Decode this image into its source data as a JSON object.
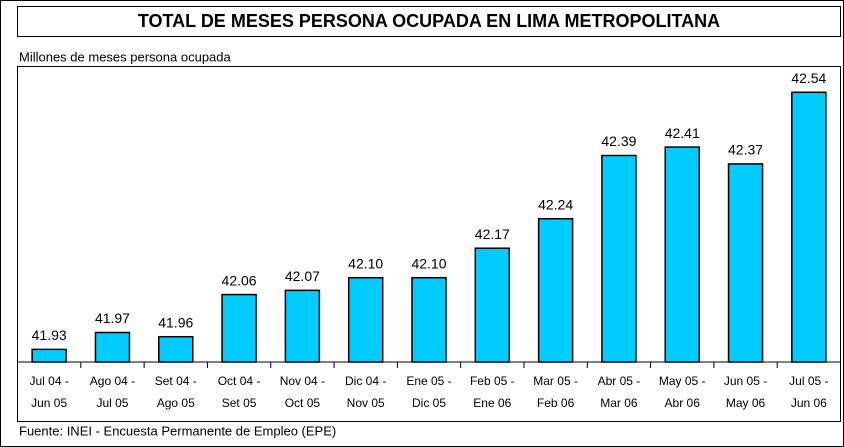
{
  "chart_data": {
    "type": "bar",
    "title": "TOTAL DE MESES PERSONA OCUPADA EN LIMA METROPOLITANA",
    "subtitle": "Millones de meses persona ocupada",
    "source": "Fuente: INEI - Encuesta Permanente de Empleo (EPE)",
    "categories": [
      [
        "Jul 04 -",
        "Jun 05"
      ],
      [
        "Ago 04 -",
        "Jul 05"
      ],
      [
        "Set 04 -",
        "Ago 05"
      ],
      [
        "Oct 04 -",
        "Set 05"
      ],
      [
        "Nov 04 -",
        "Oct 05"
      ],
      [
        "Dic 04 -",
        "Nov 05"
      ],
      [
        "Ene 05 -",
        "Dic 05"
      ],
      [
        "Feb 05 -",
        "Ene 06"
      ],
      [
        "Mar 05 -",
        "Feb 06"
      ],
      [
        "Abr 05 -",
        "Mar 06"
      ],
      [
        "May 05 -",
        "Abr 06"
      ],
      [
        "Jun 05 -",
        "May 06"
      ],
      [
        "Jul 05 -",
        "Jun 06"
      ]
    ],
    "values": [
      41.93,
      41.97,
      41.96,
      42.06,
      42.07,
      42.1,
      42.1,
      42.17,
      42.24,
      42.39,
      42.41,
      42.37,
      42.54
    ],
    "value_labels": [
      "41.93",
      "41.97",
      "41.96",
      "42.06",
      "42.07",
      "42.10",
      "42.10",
      "42.17",
      "42.24",
      "42.39",
      "42.41",
      "42.37",
      "42.54"
    ],
    "color": "#00ccff",
    "ylim": [
      41.9,
      42.6
    ]
  }
}
